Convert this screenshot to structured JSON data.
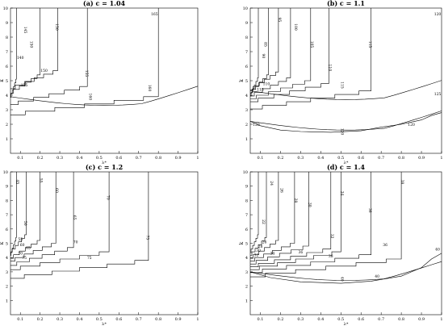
{
  "chart_data": [
    {
      "type": "contour",
      "title": "(a) c = 1.04",
      "xlabel": "λ*",
      "ylabel": "k",
      "xlim": [
        0.05,
        1.0
      ],
      "ylim": [
        0,
        10
      ],
      "xticks": [
        "0.1",
        "0.2",
        "0.3",
        "0.4",
        "0.5",
        "0.6",
        "0.7",
        "0.8",
        "0.9",
        "1"
      ],
      "yticks": [
        "1",
        "2",
        "3",
        "4",
        "5",
        "6",
        "7",
        "8",
        "9",
        "10"
      ],
      "contours": [
        {
          "label": "145",
          "x_col": 0.08,
          "y_end": 5.1,
          "x_end": 0.05,
          "label_at": [
            0.12,
            8.5
          ]
        },
        {
          "label": "150",
          "x_col": 0.2,
          "y_end": 5.4,
          "x_end": 0.05,
          "label_at": [
            0.15,
            7.5
          ]
        },
        {
          "label": "150",
          "x_col": 0.29,
          "y_end": 5.7,
          "x_end": 0.05,
          "label_at": [
            0.28,
            8.7
          ]
        },
        {
          "label": "155",
          "x_col": 0.44,
          "y_end": 4.6,
          "x_end": 0.05,
          "label_at": [
            0.43,
            5.5
          ]
        },
        {
          "label": "160",
          "x_col": 0.8,
          "y_end": 3.9,
          "x_end": 0.05,
          "label_at": [
            0.75,
            4.5
          ]
        },
        {
          "label": "160",
          "x_col": null,
          "y_end": 3.9,
          "x_end": 0.05,
          "label_at": [
            0.45,
            3.9
          ]
        }
      ],
      "extra_labels": [
        {
          "text": "140",
          "at": [
            0.1,
            6.5
          ]
        },
        {
          "text": "150",
          "at": [
            0.22,
            5.6
          ]
        },
        {
          "text": "155",
          "at": [
            0.12,
            4.6
          ]
        },
        {
          "text": "165",
          "at": [
            0.78,
            9.5
          ]
        }
      ],
      "bottom_curve": null
    },
    {
      "type": "contour",
      "title": "(b) c = 1.1",
      "xlabel": "λ*",
      "ylabel": "k",
      "xlim": [
        0.05,
        1.0
      ],
      "ylim": [
        0,
        10
      ],
      "xticks": [
        "0.1",
        "0.2",
        "0.3",
        "0.4",
        "0.5",
        "0.6",
        "0.7",
        "0.8",
        "0.9",
        "1"
      ],
      "yticks": [
        "1",
        "2",
        "3",
        "4",
        "5",
        "6",
        "7",
        "8",
        "9",
        "10"
      ],
      "contours": [
        {
          "label": "85",
          "x_col": 0.09,
          "y_end": 5.2,
          "x_end": 0.05,
          "label_at": [
            0.12,
            7.5
          ]
        },
        {
          "label": "90",
          "x_col": 0.14,
          "y_end": 5.4,
          "x_end": 0.05,
          "label_at": [
            0.11,
            6.7
          ]
        },
        {
          "label": "95",
          "x_col": 0.19,
          "y_end": 5.6,
          "x_end": 0.05,
          "label_at": [
            0.19,
            9.2
          ]
        },
        {
          "label": "100",
          "x_col": 0.25,
          "y_end": 5.2,
          "x_end": 0.05,
          "label_at": [
            0.27,
            8.7
          ]
        },
        {
          "label": "105",
          "x_col": 0.35,
          "y_end": 5.0,
          "x_end": 0.05,
          "label_at": [
            0.35,
            7.5
          ]
        },
        {
          "label": "110",
          "x_col": 0.44,
          "y_end": 4.8,
          "x_end": 0.05,
          "label_at": [
            0.44,
            5.9
          ]
        },
        {
          "label": "115",
          "x_col": 0.65,
          "y_end": 4.3,
          "x_end": 0.05,
          "label_at": [
            0.64,
            7.5
          ]
        },
        {
          "label": "115",
          "x_col": null,
          "y_end": 4.3,
          "x_end": 0.05,
          "label_at": [
            0.5,
            4.7
          ]
        },
        {
          "label": "120",
          "x_col": null,
          "y_end": 2.2,
          "x_end": 0.05,
          "label_at": [
            0.5,
            1.5
          ]
        }
      ],
      "extra_labels": [
        {
          "text": "110",
          "at": [
            0.13,
            4.7
          ]
        },
        {
          "text": "115",
          "at": [
            0.1,
            4.3
          ]
        },
        {
          "text": "120",
          "at": [
            0.08,
            1.9
          ]
        },
        {
          "text": "120",
          "at": [
            0.85,
            1.9
          ]
        },
        {
          "text": "125",
          "at": [
            0.98,
            4.0
          ]
        },
        {
          "text": "120",
          "at": [
            0.98,
            9.5
          ]
        }
      ],
      "bottom_curve": "b"
    },
    {
      "type": "contour",
      "title": "(c) c = 1.2",
      "xlabel": "λ*",
      "ylabel": "k",
      "xlim": [
        0.05,
        1.0
      ],
      "ylim": [
        0,
        10
      ],
      "xticks": [
        "0.1",
        "0.2",
        "0.3",
        "0.4",
        "0.5",
        "0.6",
        "0.7",
        "0.8",
        "0.9",
        "1"
      ],
      "yticks": [
        "1",
        "2",
        "3",
        "4",
        "5",
        "6",
        "7",
        "8",
        "9",
        "10"
      ],
      "contours": [
        {
          "label": "45",
          "x_col": 0.08,
          "y_end": 5.4,
          "x_end": 0.05,
          "label_at": [
            0.08,
            9.3
          ]
        },
        {
          "label": "50",
          "x_col": 0.13,
          "y_end": 5.6,
          "x_end": 0.05,
          "label_at": [
            0.12,
            6.4
          ]
        },
        {
          "label": "55",
          "x_col": 0.2,
          "y_end": 5.2,
          "x_end": 0.05,
          "label_at": [
            0.2,
            9.4
          ]
        },
        {
          "label": "60",
          "x_col": 0.28,
          "y_end": 5.0,
          "x_end": 0.05,
          "label_at": [
            0.28,
            8.7
          ]
        },
        {
          "label": "65",
          "x_col": 0.37,
          "y_end": 4.7,
          "x_end": 0.05,
          "label_at": [
            0.37,
            6.8
          ]
        },
        {
          "label": "70",
          "x_col": 0.55,
          "y_end": 4.4,
          "x_end": 0.05,
          "label_at": [
            0.54,
            8.2
          ]
        },
        {
          "label": "75",
          "x_col": 0.75,
          "y_end": 3.8,
          "x_end": 0.05,
          "label_at": [
            0.74,
            5.4
          ]
        }
      ],
      "extra_labels": [
        {
          "text": "55",
          "at": [
            0.1,
            5.2
          ]
        },
        {
          "text": "60",
          "at": [
            0.11,
            4.8
          ]
        },
        {
          "text": "65",
          "at": [
            0.14,
            4.6
          ]
        },
        {
          "text": "70",
          "at": [
            0.1,
            4.2
          ]
        },
        {
          "text": "75",
          "at": [
            0.12,
            3.9
          ]
        },
        {
          "text": "70",
          "at": [
            0.38,
            5.0
          ]
        },
        {
          "text": "75",
          "at": [
            0.45,
            3.9
          ]
        }
      ],
      "bottom_curve": null
    },
    {
      "type": "contour",
      "title": "(d) c = 1.4",
      "xlabel": "λ*",
      "ylabel": "k",
      "xlim": [
        0.05,
        1.0
      ],
      "ylim": [
        0,
        10
      ],
      "xticks": [
        "0.1",
        "0.2",
        "0.3",
        "0.4",
        "0.5",
        "0.6",
        "0.7",
        "0.8",
        "0.9",
        "1"
      ],
      "yticks": [
        "1",
        "2",
        "3",
        "4",
        "5",
        "6",
        "7",
        "8",
        "9",
        "10"
      ],
      "contours": [
        {
          "label": "22",
          "x_col": 0.09,
          "y_end": 5.6,
          "x_end": 0.05,
          "label_at": [
            0.11,
            6.5
          ]
        },
        {
          "label": "24",
          "x_col": 0.13,
          "y_end": 5.4,
          "x_end": 0.05,
          "label_at": [
            0.15,
            9.2
          ]
        },
        {
          "label": "26",
          "x_col": 0.19,
          "y_end": 5.2,
          "x_end": 0.05,
          "label_at": [
            0.2,
            8.7
          ]
        },
        {
          "label": "28",
          "x_col": 0.27,
          "y_end": 5.0,
          "x_end": 0.05,
          "label_at": [
            0.27,
            8.0
          ]
        },
        {
          "label": "30",
          "x_col": 0.34,
          "y_end": 4.8,
          "x_end": 0.05,
          "label_at": [
            0.34,
            7.7
          ]
        },
        {
          "label": "32",
          "x_col": 0.45,
          "y_end": 4.6,
          "x_end": 0.05,
          "label_at": [
            0.45,
            5.5
          ]
        },
        {
          "label": "34",
          "x_col": 0.5,
          "y_end": 4.4,
          "x_end": 0.05,
          "label_at": [
            0.5,
            8.5
          ]
        },
        {
          "label": "36",
          "x_col": 0.65,
          "y_end": 4.2,
          "x_end": 0.05,
          "label_at": [
            0.64,
            7.3
          ]
        },
        {
          "label": "38",
          "x_col": 0.8,
          "y_end": 3.9,
          "x_end": 0.05,
          "label_at": [
            0.8,
            9.3
          ]
        },
        {
          "label": "40",
          "x_col": null,
          "y_end": 3.0,
          "x_end": 0.05,
          "label_at": [
            0.5,
            2.5
          ]
        }
      ],
      "extra_labels": [
        {
          "text": "26",
          "at": [
            0.12,
            5.0
          ]
        },
        {
          "text": "28",
          "at": [
            0.1,
            4.7
          ]
        },
        {
          "text": "30",
          "at": [
            0.09,
            4.4
          ]
        },
        {
          "text": "32",
          "at": [
            0.08,
            4.1
          ]
        },
        {
          "text": "34",
          "at": [
            0.16,
            4.2
          ]
        },
        {
          "text": "36",
          "at": [
            0.3,
            4.3
          ]
        },
        {
          "text": "38",
          "at": [
            0.45,
            4.0
          ]
        },
        {
          "text": "40",
          "at": [
            0.68,
            2.6
          ]
        },
        {
          "text": "40",
          "at": [
            0.98,
            4.5
          ]
        },
        {
          "text": "36",
          "at": [
            0.72,
            4.8
          ]
        }
      ],
      "bottom_curve": "d"
    }
  ]
}
